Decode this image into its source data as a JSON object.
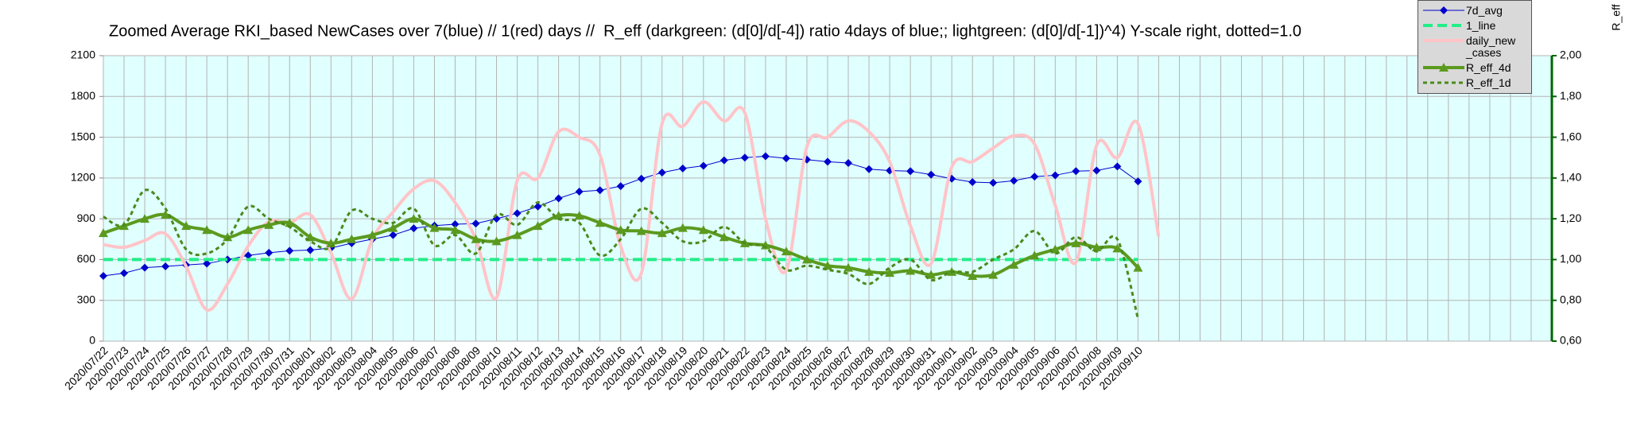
{
  "chart_data": {
    "type": "line",
    "title": "Zoomed Average RKI_based NewCases over 7(blue) // 1(red) days //  R_eff (darkgreen: (d[0]/d[-4]) ratio 4days of blue;; lightgreen: (d[0]/d[-1])^4) Y-scale right, dotted=1.0",
    "y2label": "R_eff",
    "categories": [
      "2020/07/22",
      "2020/07/23",
      "2020/07/24",
      "2020/07/25",
      "2020/07/26",
      "2020/07/27",
      "2020/07/28",
      "2020/07/29",
      "2020/07/30",
      "2020/07/31",
      "2020/08/01",
      "2020/08/02",
      "2020/08/03",
      "2020/08/04",
      "2020/08/05",
      "2020/08/06",
      "2020/08/07",
      "2020/08/08",
      "2020/08/09",
      "2020/08/10",
      "2020/08/11",
      "2020/08/12",
      "2020/08/13",
      "2020/08/14",
      "2020/08/15",
      "2020/08/16",
      "2020/08/17",
      "2020/08/18",
      "2020/08/19",
      "2020/08/20",
      "2020/08/21",
      "2020/08/22",
      "2020/08/23",
      "2020/08/24",
      "2020/08/25",
      "2020/08/26",
      "2020/08/27",
      "2020/08/28",
      "2020/08/29",
      "2020/08/30",
      "2020/08/31",
      "2020/09/01",
      "2020/09/02",
      "2020/09/03",
      "2020/09/04",
      "2020/09/05",
      "2020/09/06",
      "2020/09/07",
      "2020/09/08",
      "2020/09/09",
      "2020/09/10",
      null,
      null,
      null,
      null,
      null,
      null,
      null,
      null,
      null,
      null,
      null,
      null,
      null,
      null,
      null,
      null,
      null,
      null,
      null,
      null
    ],
    "series": [
      {
        "name": "7d_avg",
        "color": "#0000cc",
        "width": 1,
        "marker": "diamond",
        "smooth": false,
        "axis": "y",
        "values": [
          480,
          500,
          540,
          550,
          560,
          570,
          600,
          630,
          650,
          665,
          670,
          685,
          720,
          750,
          780,
          830,
          850,
          860,
          865,
          900,
          940,
          990,
          1050,
          1100,
          1110,
          1140,
          1195,
          1240,
          1270,
          1290,
          1330,
          1350,
          1360,
          1345,
          1335,
          1320,
          1310,
          1265,
          1255,
          1250,
          1225,
          1195,
          1170,
          1165,
          1180,
          1210,
          1220,
          1250,
          1255,
          1285,
          1175,
          null,
          null,
          null,
          null,
          null,
          null,
          null,
          null,
          null,
          null,
          null,
          null,
          null,
          null,
          null,
          null,
          null,
          null,
          null,
          null
        ]
      },
      {
        "name": "1_line",
        "color": "#22ee88",
        "width": 4,
        "dash": "dashed",
        "marker": "none",
        "smooth": false,
        "axis": "y2",
        "values": [
          1,
          1,
          1,
          1,
          1,
          1,
          1,
          1,
          1,
          1,
          1,
          1,
          1,
          1,
          1,
          1,
          1,
          1,
          1,
          1,
          1,
          1,
          1,
          1,
          1,
          1,
          1,
          1,
          1,
          1,
          1,
          1,
          1,
          1,
          1,
          1,
          1,
          1,
          1,
          1,
          1,
          1,
          1,
          1,
          1,
          1,
          1,
          1,
          1,
          1,
          1,
          null,
          null,
          null,
          null,
          null,
          null,
          null,
          null,
          null,
          null,
          null,
          null,
          null,
          null,
          null,
          null,
          null,
          null,
          null,
          null
        ]
      },
      {
        "name": "daily_new_cases",
        "color": "#ffc4c8",
        "width": 4,
        "marker": "none",
        "smooth": true,
        "axis": "y",
        "values": [
          710,
          690,
          740,
          790,
          550,
          230,
          420,
          700,
          880,
          870,
          930,
          650,
          310,
          750,
          950,
          1120,
          1180,
          1020,
          750,
          320,
          1180,
          1200,
          1540,
          1500,
          1370,
          700,
          500,
          1600,
          1580,
          1760,
          1620,
          1680,
          900,
          520,
          1430,
          1500,
          1620,
          1540,
          1320,
          850,
          570,
          1280,
          1320,
          1420,
          1510,
          1450,
          1000,
          580,
          1440,
          1350,
          1600,
          770,
          null,
          null,
          null,
          null,
          null,
          null,
          null,
          null,
          null,
          null,
          null,
          null,
          null,
          null,
          null,
          null,
          null,
          null,
          null
        ]
      },
      {
        "name": "R_eff_4d",
        "color": "#5b9a1f",
        "width": 4,
        "marker": "triangle",
        "smooth": true,
        "axis": "y2",
        "values": [
          1.13,
          1.165,
          1.2,
          1.22,
          1.165,
          1.145,
          1.11,
          1.145,
          1.17,
          1.18,
          1.11,
          1.08,
          1.1,
          1.12,
          1.155,
          1.2,
          1.155,
          1.145,
          1.1,
          1.09,
          1.12,
          1.165,
          1.215,
          1.215,
          1.18,
          1.145,
          1.14,
          1.13,
          1.155,
          1.145,
          1.11,
          1.08,
          1.07,
          1.04,
          1.0,
          0.97,
          0.96,
          0.94,
          0.935,
          0.945,
          0.925,
          0.94,
          0.92,
          0.925,
          0.975,
          1.02,
          1.05,
          1.08,
          1.06,
          1.055,
          0.96,
          null,
          null,
          null,
          null,
          null,
          null,
          null,
          null,
          null,
          null,
          null,
          null,
          null,
          null,
          null,
          null,
          null,
          null,
          null,
          null
        ]
      },
      {
        "name": "R_eff_1d",
        "color": "#4a8a1a",
        "width": 3,
        "dash": "dotted",
        "marker": "none",
        "smooth": true,
        "axis": "y2",
        "values": [
          1.21,
          1.17,
          1.34,
          1.25,
          1.05,
          1.03,
          1.1,
          1.26,
          1.2,
          1.16,
          1.09,
          1.06,
          1.24,
          1.2,
          1.18,
          1.25,
          1.07,
          1.12,
          1.03,
          1.22,
          1.17,
          1.28,
          1.2,
          1.18,
          1.02,
          1.1,
          1.25,
          1.18,
          1.09,
          1.09,
          1.16,
          1.08,
          1.06,
          0.95,
          0.97,
          0.95,
          0.93,
          0.88,
          0.96,
          1.0,
          0.9,
          0.94,
          0.94,
          1.0,
          1.05,
          1.14,
          1.03,
          1.11,
          1.04,
          1.1,
          0.71,
          null,
          null,
          null,
          null,
          null,
          null,
          null,
          null,
          null,
          null,
          null,
          null,
          null,
          null,
          null,
          null,
          null,
          null,
          null,
          null
        ]
      }
    ],
    "ylim": [
      0,
      2100
    ],
    "yticks": [
      0,
      300,
      600,
      900,
      1200,
      1500,
      1800,
      2100
    ],
    "y2lim": [
      0.6,
      2.0
    ],
    "y2ticks": [
      {
        "value": 0.6,
        "label": "0,60"
      },
      {
        "value": 0.8,
        "label": "0,80"
      },
      {
        "value": 1.0,
        "label": "1,00"
      },
      {
        "value": 1.2,
        "label": "1,20"
      },
      {
        "value": 1.4,
        "label": "1,40"
      },
      {
        "value": 1.6,
        "label": "1,60"
      },
      {
        "value": 1.8,
        "label": "1,80"
      },
      {
        "value": 2.0,
        "label": "2,00"
      }
    ],
    "grid": true,
    "plot_background": "#e0ffff",
    "legend": "top-right"
  }
}
